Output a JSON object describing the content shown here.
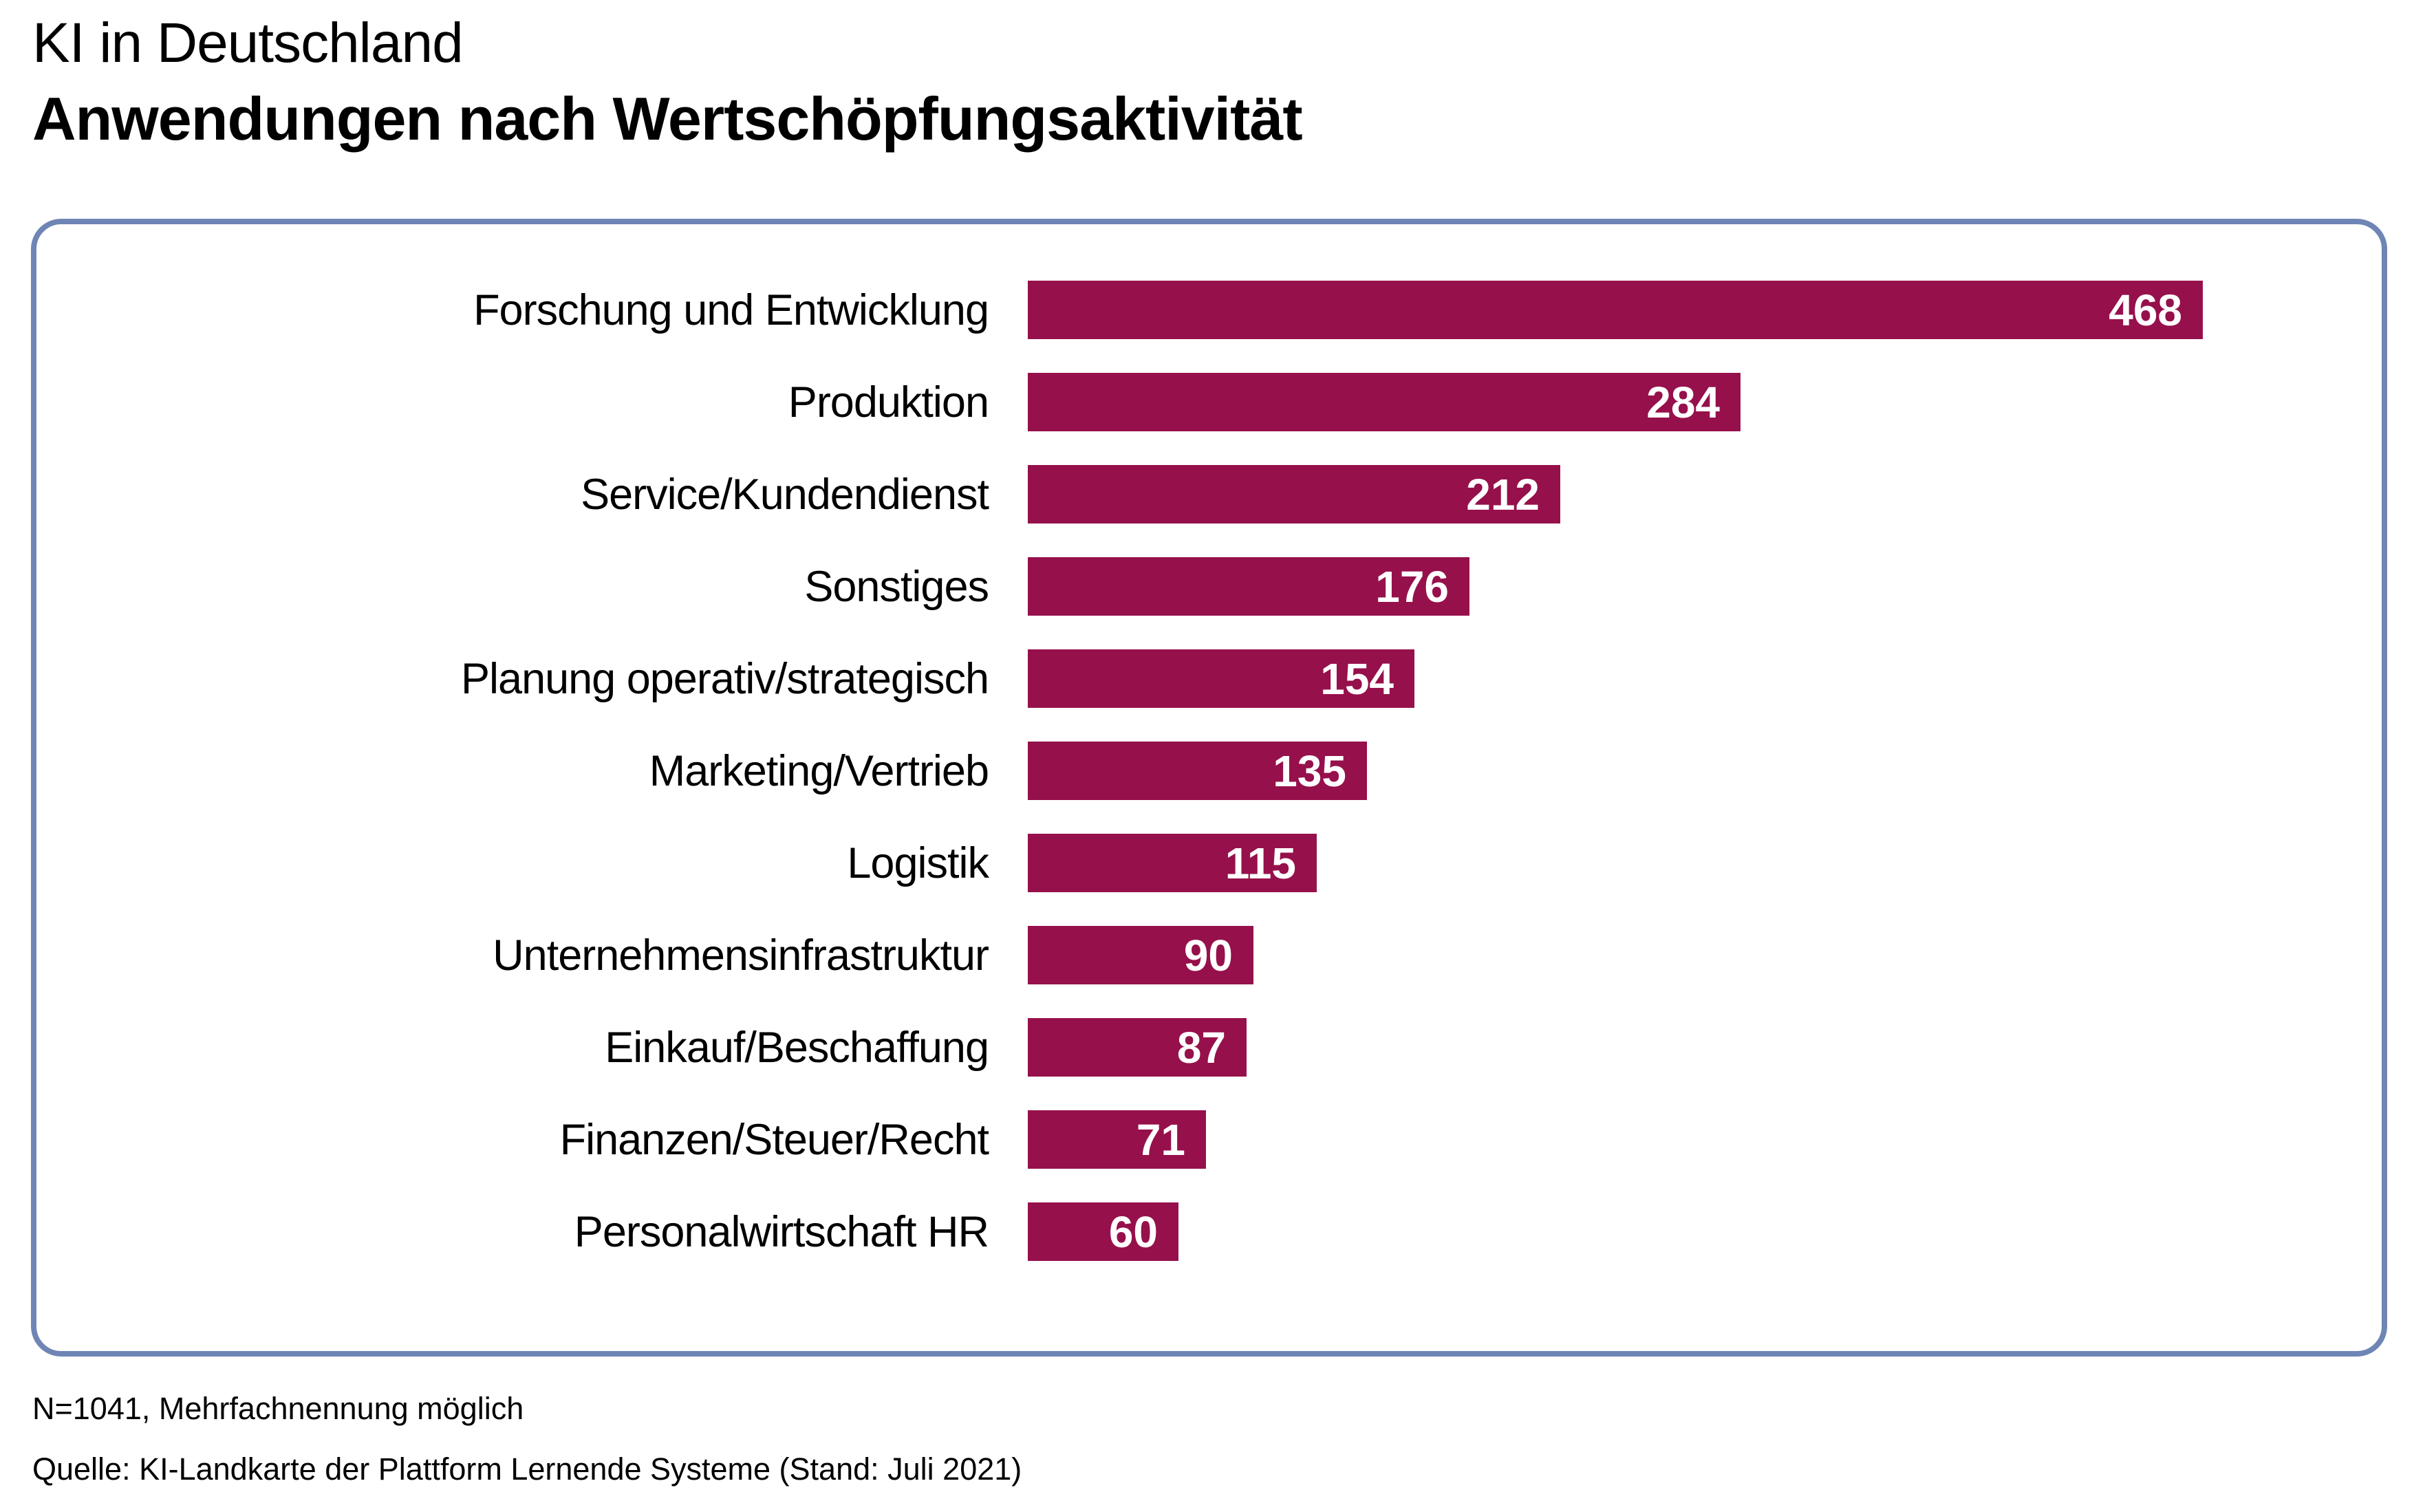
{
  "header": {
    "title_line1": "KI in Deutschland",
    "title_line2": "Anwendungen nach Wertschöpfungsaktivität"
  },
  "chart_data": {
    "type": "bar",
    "orientation": "horizontal",
    "title": "KI in Deutschland – Anwendungen nach Wertschöpfungsaktivität",
    "categories": [
      "Forschung und Entwicklung",
      "Produktion",
      "Service/Kundendienst",
      "Sonstiges",
      "Planung operativ/strategisch",
      "Marketing/Vertrieb",
      "Logistik",
      "Unternehmensinfrastruktur",
      "Einkauf/Beschaffung",
      "Finanzen/Steuer/Recht",
      "Personalwirtschaft HR"
    ],
    "values": [
      468,
      284,
      212,
      176,
      154,
      135,
      115,
      90,
      87,
      71,
      60
    ],
    "value_labels": "inside bar, right-aligned, white bold",
    "xlim": [
      0,
      468
    ],
    "grid": false,
    "legend": false,
    "axis_ticks": "none (values printed on bars)"
  },
  "footer": {
    "note": "N=1041, Mehrfachnennung möglich",
    "source": "Quelle: KI-Landkarte der Plattform Lernende Systeme (Stand: Juli 2021)"
  },
  "colors": {
    "bar": "#96104B",
    "box_border": "#6F85B5",
    "value_text": "#FFFFFF",
    "text": "#000000",
    "background": "#FFFFFF"
  }
}
